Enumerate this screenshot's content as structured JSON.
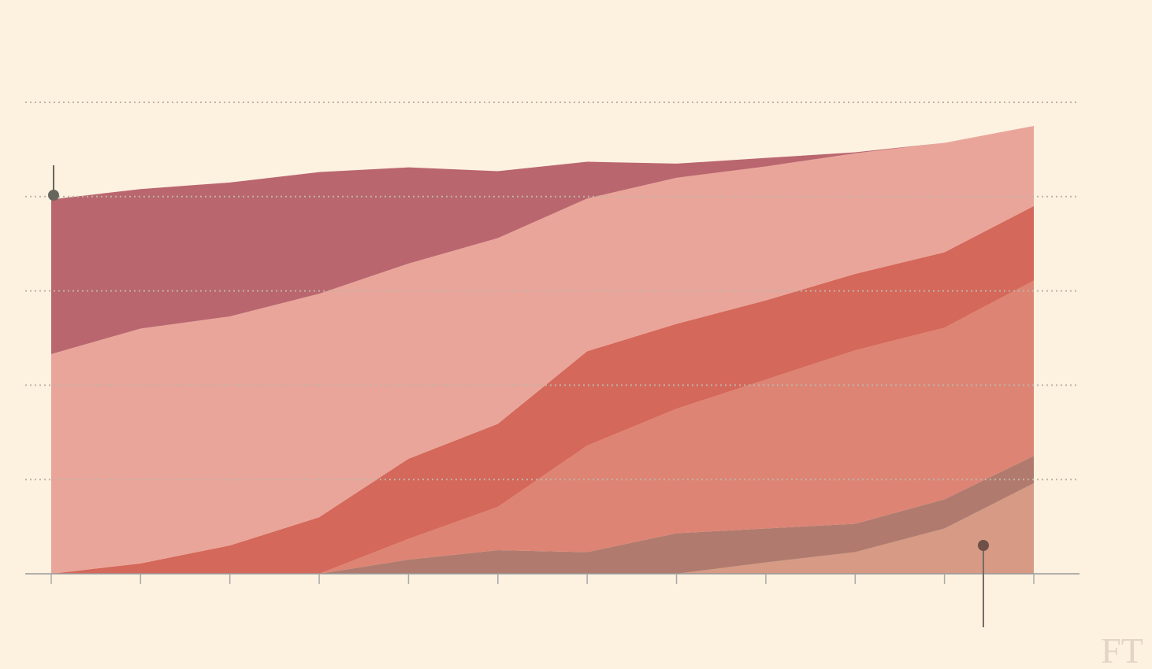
{
  "chart_data": {
    "type": "stacked-area",
    "categories": [
      null,
      null,
      null,
      null,
      null,
      null,
      null,
      null,
      null,
      null,
      null,
      null
    ],
    "series": [
      {
        "color": "#d69a85",
        "values": [
          0,
          0,
          0,
          0,
          0,
          0,
          0,
          0,
          0.12,
          0.23,
          0.48,
          0.96
        ]
      },
      {
        "color": "#b07b6e",
        "values": [
          0,
          0,
          0,
          0,
          0.15,
          0.25,
          0.23,
          0.43,
          0.36,
          0.3,
          0.31,
          0.29
        ]
      },
      {
        "color": "#dd8474",
        "values": [
          0,
          0,
          0,
          0,
          0.22,
          0.46,
          1.13,
          1.32,
          1.58,
          1.84,
          1.82,
          1.86
        ]
      },
      {
        "color": "#d4685a",
        "values": [
          0,
          0.11,
          0.3,
          0.6,
          0.85,
          0.88,
          1.0,
          0.9,
          0.84,
          0.81,
          0.8,
          0.79
        ]
      },
      {
        "color": "#eaa59a",
        "values": [
          2.33,
          2.49,
          2.43,
          2.37,
          2.07,
          1.97,
          1.62,
          1.55,
          1.42,
          1.28,
          1.16,
          0.85
        ]
      },
      {
        "color": "#b9666f",
        "values": [
          1.64,
          1.48,
          1.42,
          1.29,
          1.02,
          0.71,
          0.39,
          0.15,
          0.09,
          0.01,
          0,
          0
        ]
      }
    ],
    "ylim": [
      0,
      5
    ],
    "gridlines": [
      1,
      2,
      3,
      4,
      5
    ],
    "grid": true,
    "logo": "FT"
  }
}
